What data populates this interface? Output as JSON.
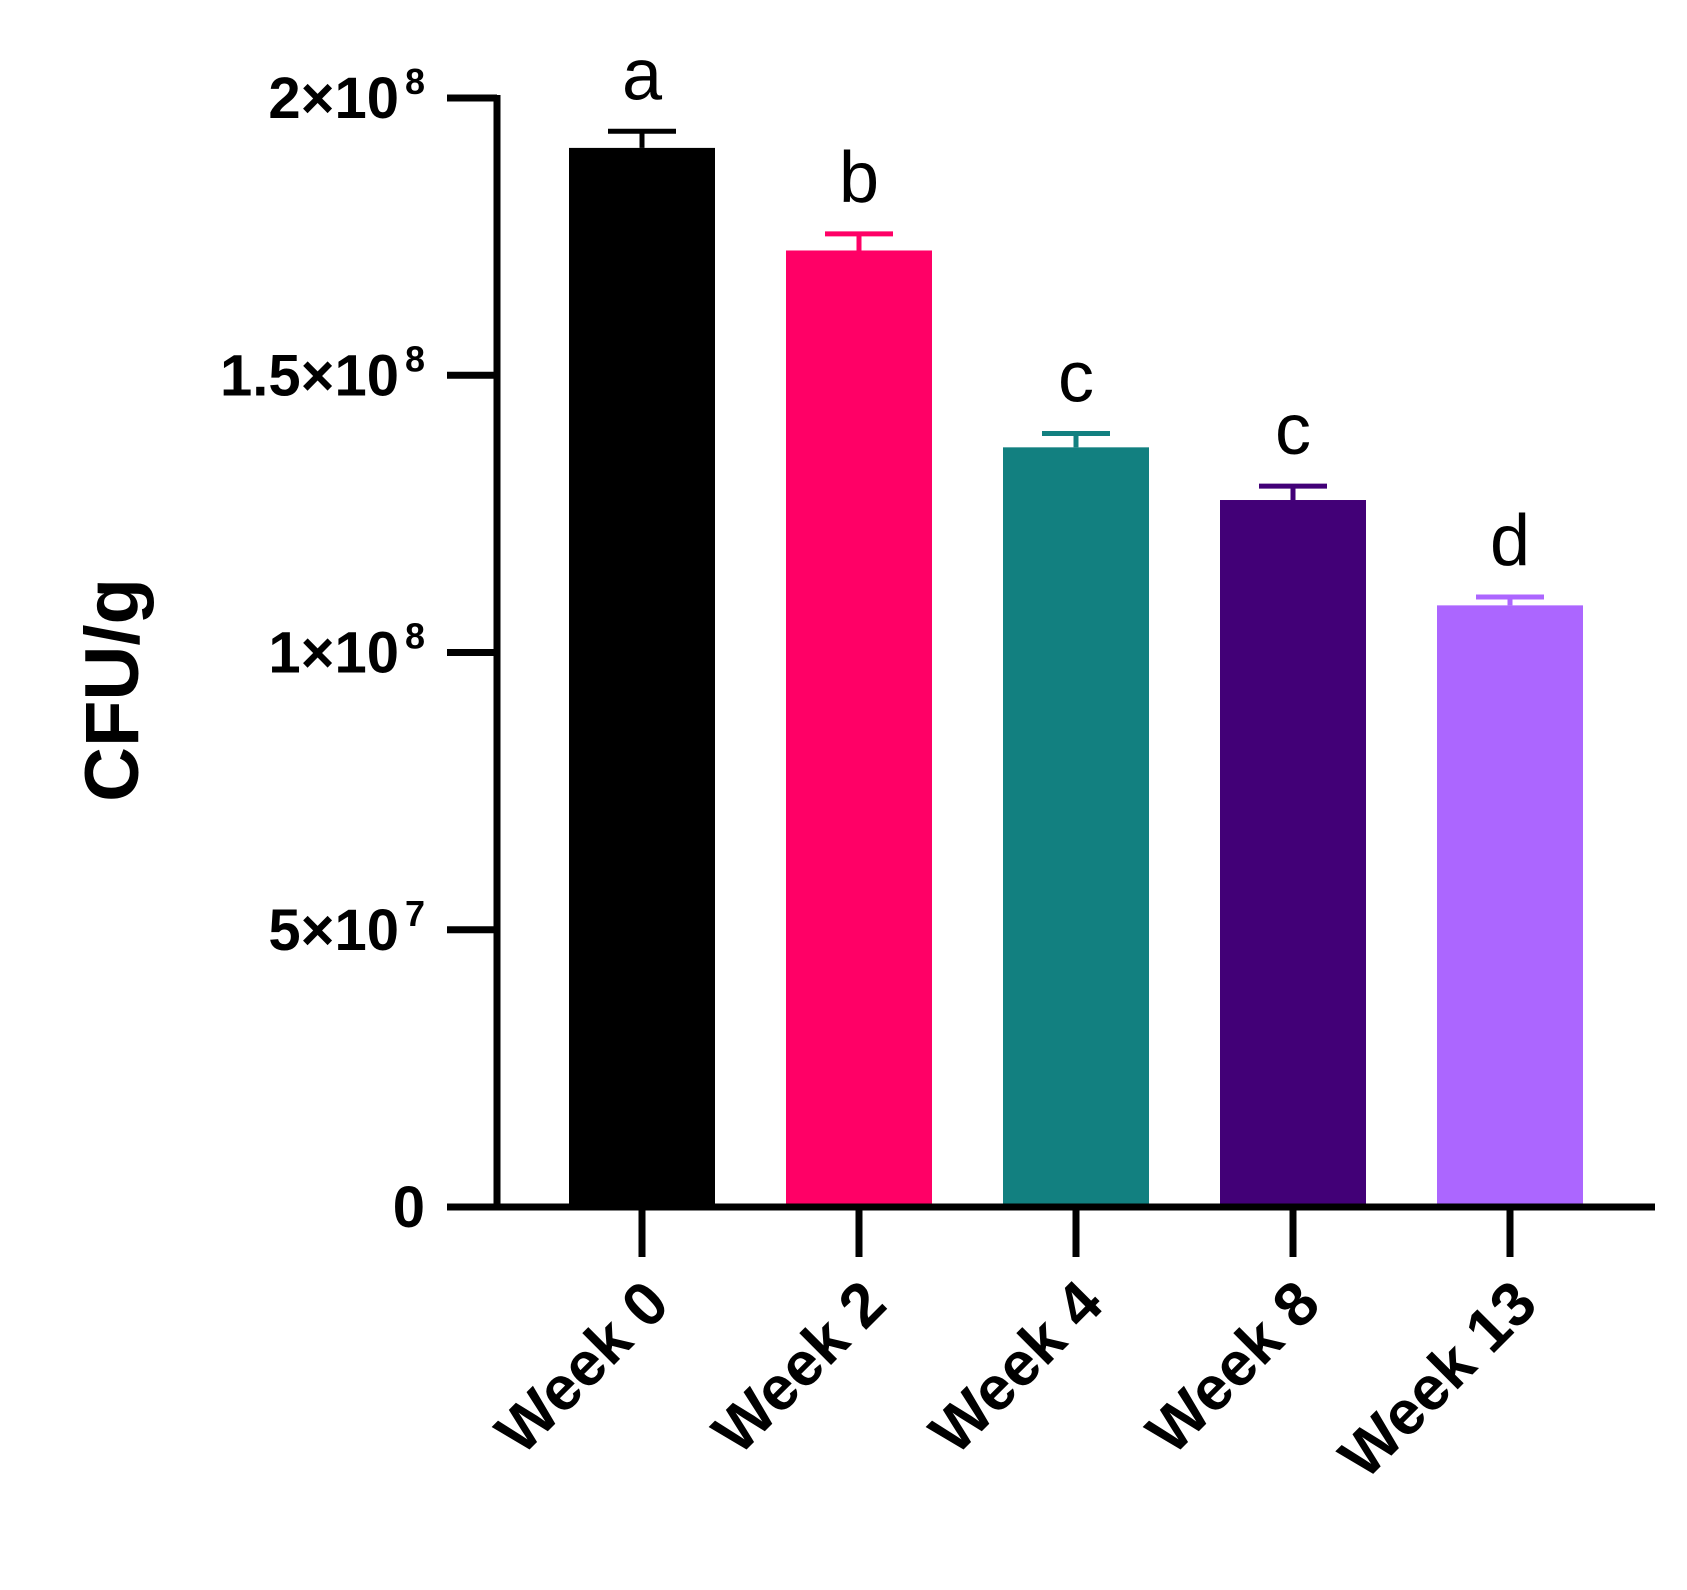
{
  "chart_data": {
    "type": "bar",
    "title": "",
    "xlabel": "",
    "ylabel": "CFU/g",
    "ylim": [
      0,
      200000000
    ],
    "grid": false,
    "categories": [
      "Week 0",
      "Week 2",
      "Week 4",
      "Week 8",
      "Week 13"
    ],
    "values": [
      191000000,
      172500000,
      137000000,
      127500000,
      108500000
    ],
    "errors": [
      3000000,
      3000000,
      2500000,
      2500000,
      1500000
    ],
    "significance_letters": [
      "a",
      "b",
      "c",
      "c",
      "d"
    ],
    "colors": [
      "#000000",
      "#ff0066",
      "#128080",
      "#420077",
      "#ac66ff"
    ],
    "y_ticks": [
      {
        "value": 200000000,
        "mantissa": "2×10",
        "exponent": "8"
      },
      {
        "value": 150000000,
        "mantissa": "1.5×10",
        "exponent": "8"
      },
      {
        "value": 100000000,
        "mantissa": "1×10",
        "exponent": "8"
      },
      {
        "value": 50000000,
        "mantissa": "5×10",
        "exponent": "7"
      },
      {
        "value": 0,
        "mantissa": "0",
        "exponent": ""
      }
    ]
  }
}
